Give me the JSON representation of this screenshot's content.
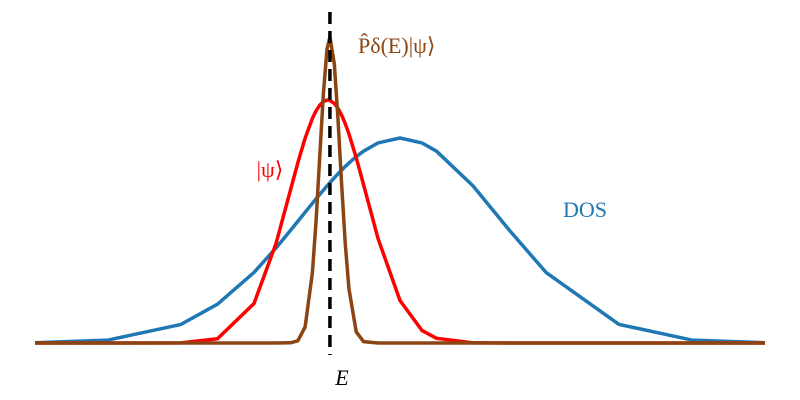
{
  "chart_data": {
    "type": "line",
    "x": [
      0,
      10,
      20,
      25,
      30,
      33,
      35,
      36,
      37,
      38,
      38.5,
      39,
      39.5,
      40,
      40.4,
      41,
      41.5,
      42,
      42.5,
      43,
      44,
      45,
      47,
      50,
      53,
      55,
      60,
      65,
      70,
      80,
      90,
      100
    ],
    "xlim": [
      0,
      100
    ],
    "ylim": [
      0,
      320
    ],
    "series": [
      {
        "name": "DOS",
        "color": "#1f77b4",
        "values": [
          0.26,
          2.9,
          18.6,
          38.8,
          70.6,
          94.9,
          112.6,
          121.6,
          130.7,
          139.7,
          144.2,
          148.5,
          152.8,
          157.1,
          160.3,
          165.2,
          169.1,
          172.8,
          176.5,
          180.0,
          186.3,
          191.8,
          200.1,
          205,
          200.1,
          191.8,
          157.1,
          112.6,
          70.6,
          18.6,
          2.9,
          0.26
        ]
      },
      {
        "name": "|ψ⟩",
        "color": "#ff0000",
        "values": [
          0,
          0,
          0.18,
          4.2,
          39.5,
          99.1,
          153,
          180.1,
          204.8,
          224.6,
          232.1,
          237.8,
          241.4,
          243.0,
          242.6,
          239.5,
          234.7,
          227.9,
          219.3,
          209.2,
          185.4,
          158.5,
          104.2,
          42.5,
          12.6,
          4.7,
          0.2,
          0,
          0,
          0,
          0,
          0
        ]
      },
      {
        "name": "P̂δ(E)|ψ⟩",
        "color": "#8b4513",
        "values": [
          0,
          0,
          0,
          0,
          0,
          0,
          0.2,
          2.2,
          16.0,
          70.4,
          121.8,
          185.6,
          248.9,
          293.8,
          306,
          279.2,
          224.7,
          159.2,
          99.4,
          54.6,
          11.2,
          1.4,
          0,
          0,
          0,
          0,
          0,
          0,
          0,
          0,
          0,
          0
        ]
      }
    ],
    "vline": {
      "x": 40.4,
      "label": "E",
      "color": "#000000"
    }
  }
}
